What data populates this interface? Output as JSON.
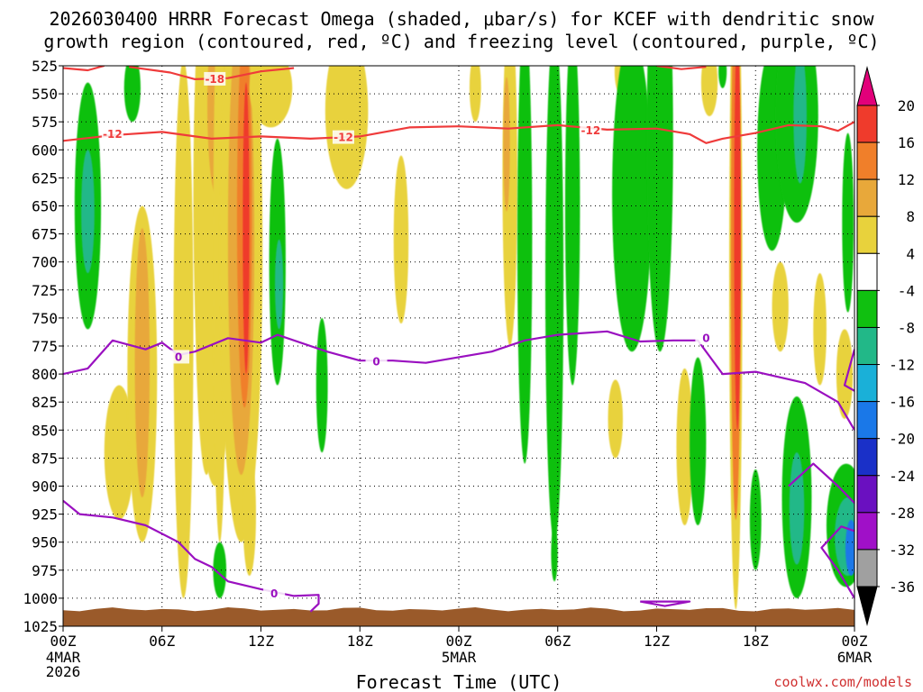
{
  "title_line1": "2026030400 HRRR Forecast Omega (shaded, μbar/s) for KCEF with dendritic snow",
  "title_line2": "growth region (contoured, red, ºC) and freezing level (contoured, purple, ºC)",
  "xlabel": "Forecast Time (UTC)",
  "watermark": "coolwx.com/models",
  "chart_data": {
    "type": "heatmap",
    "x_range_hours": [
      0,
      48
    ],
    "y_range_hPa": [
      525,
      1025
    ],
    "y_ticks": [
      "525",
      "550",
      "575",
      "600",
      "625",
      "650",
      "675",
      "700",
      "725",
      "750",
      "775",
      "800",
      "825",
      "850",
      "875",
      "900",
      "925",
      "950",
      "975",
      "1000",
      "1025"
    ],
    "x_ticks": [
      {
        "h": 0,
        "label": "00Z"
      },
      {
        "h": 6,
        "label": "06Z"
      },
      {
        "h": 12,
        "label": "12Z"
      },
      {
        "h": 18,
        "label": "18Z"
      },
      {
        "h": 24,
        "label": "00Z"
      },
      {
        "h": 30,
        "label": "06Z"
      },
      {
        "h": 36,
        "label": "12Z"
      },
      {
        "h": 42,
        "label": "18Z"
      },
      {
        "h": 48,
        "label": "00Z"
      }
    ],
    "date_labels": [
      {
        "h": 0,
        "lines": [
          "4MAR",
          "2026"
        ]
      },
      {
        "h": 24,
        "lines": [
          "5MAR"
        ]
      },
      {
        "h": 48,
        "lines": [
          "6MAR"
        ]
      }
    ],
    "colorbar": {
      "labels": [
        "20",
        "16",
        "12",
        "8",
        "4",
        "-4",
        "-8",
        "-12",
        "-16",
        "-20",
        "-24",
        "-28",
        "-32",
        "-36"
      ],
      "colors": [
        "#e2007a",
        "#ef3b2c",
        "#f07f2a",
        "#e8a83a",
        "#e8d23c",
        "#ffffff",
        "#10c010",
        "#22b888",
        "#1ab0d8",
        "#1a78e8",
        "#1a30c8",
        "#6a10c0",
        "#a010c8",
        "#a0a0a0",
        "#000000"
      ]
    },
    "omega_cells": [
      {
        "h": 1.5,
        "p": 650,
        "rh": 0.8,
        "rp": 110,
        "c": "#10c010"
      },
      {
        "h": 1.5,
        "p": 655,
        "rh": 0.4,
        "rp": 55,
        "c": "#22b888"
      },
      {
        "h": 4.2,
        "p": 545,
        "rh": 0.5,
        "rp": 30,
        "c": "#10c010"
      },
      {
        "h": 3.4,
        "p": 870,
        "rh": 0.9,
        "rp": 60,
        "c": "#e8d23c"
      },
      {
        "h": 4.8,
        "p": 800,
        "rh": 0.9,
        "rp": 150,
        "c": "#e8d23c"
      },
      {
        "h": 4.8,
        "p": 790,
        "rh": 0.45,
        "rp": 120,
        "c": "#e8a83a"
      },
      {
        "h": 7.3,
        "p": 760,
        "rh": 0.6,
        "rp": 240,
        "c": "#e8d23c"
      },
      {
        "h": 8.7,
        "p": 700,
        "rh": 0.7,
        "rp": 190,
        "c": "#e8d23c"
      },
      {
        "h": 9.2,
        "p": 640,
        "rh": 1.3,
        "rp": 260,
        "c": "#e8d23c"
      },
      {
        "h": 9.3,
        "p": 560,
        "rh": 0.55,
        "rp": 80,
        "c": "#e8a83a"
      },
      {
        "h": 9.5,
        "p": 700,
        "rh": 0.4,
        "rp": 250,
        "c": "#e8d23c"
      },
      {
        "h": 9.5,
        "p": 975,
        "rh": 0.4,
        "rp": 25,
        "c": "#10c010"
      },
      {
        "h": 10.8,
        "p": 690,
        "rh": 1.3,
        "rp": 260,
        "c": "#e8d23c"
      },
      {
        "h": 10.8,
        "p": 680,
        "rh": 0.8,
        "rp": 210,
        "c": "#e8a83a"
      },
      {
        "h": 11.0,
        "p": 660,
        "rh": 0.45,
        "rp": 170,
        "c": "#f07f2a"
      },
      {
        "h": 11.1,
        "p": 670,
        "rh": 0.2,
        "rp": 130,
        "c": "#ef3b2c"
      },
      {
        "h": 11.3,
        "p": 925,
        "rh": 0.4,
        "rp": 55,
        "c": "#e8d23c"
      },
      {
        "h": 12.6,
        "p": 545,
        "rh": 1.3,
        "rp": 35,
        "c": "#e8d23c"
      },
      {
        "h": 13.0,
        "p": 700,
        "rh": 0.5,
        "rp": 110,
        "c": "#10c010"
      },
      {
        "h": 13.1,
        "p": 720,
        "rh": 0.25,
        "rp": 40,
        "c": "#22b888"
      },
      {
        "h": 15.7,
        "p": 810,
        "rh": 0.35,
        "rp": 60,
        "c": "#10c010"
      },
      {
        "h": 17.2,
        "p": 565,
        "rh": 1.3,
        "rp": 70,
        "c": "#e8d23c"
      },
      {
        "h": 20.5,
        "p": 680,
        "rh": 0.45,
        "rp": 75,
        "c": "#e8d23c"
      },
      {
        "h": 25.0,
        "p": 545,
        "rh": 0.35,
        "rp": 30,
        "c": "#e8d23c"
      },
      {
        "h": 27.1,
        "p": 625,
        "rh": 0.45,
        "rp": 150,
        "c": "#e8d23c"
      },
      {
        "h": 26.9,
        "p": 595,
        "rh": 0.2,
        "rp": 60,
        "c": "#e8a83a"
      },
      {
        "h": 28.0,
        "p": 680,
        "rh": 0.45,
        "rp": 200,
        "c": "#10c010"
      },
      {
        "h": 29.8,
        "p": 720,
        "rh": 0.55,
        "rp": 230,
        "c": "#10c010"
      },
      {
        "h": 30.9,
        "p": 650,
        "rh": 0.45,
        "rp": 160,
        "c": "#10c010"
      },
      {
        "h": 29.8,
        "p": 960,
        "rh": 0.2,
        "rp": 25,
        "c": "#10c010"
      },
      {
        "h": 33.8,
        "p": 530,
        "rh": 0.35,
        "rp": 20,
        "c": "#e8d23c"
      },
      {
        "h": 33.5,
        "p": 840,
        "rh": 0.45,
        "rp": 35,
        "c": "#e8d23c"
      },
      {
        "h": 34.5,
        "p": 640,
        "rh": 1.2,
        "rp": 140,
        "c": "#10c010"
      },
      {
        "h": 36.2,
        "p": 590,
        "rh": 0.8,
        "rp": 190,
        "c": "#10c010"
      },
      {
        "h": 37.7,
        "p": 865,
        "rh": 0.5,
        "rp": 70,
        "c": "#e8d23c"
      },
      {
        "h": 38.5,
        "p": 860,
        "rh": 0.5,
        "rp": 75,
        "c": "#10c010"
      },
      {
        "h": 39.2,
        "p": 540,
        "rh": 0.5,
        "rp": 30,
        "c": "#e8d23c"
      },
      {
        "h": 40.0,
        "p": 530,
        "rh": 0.25,
        "rp": 15,
        "c": "#10c010"
      },
      {
        "h": 40.8,
        "p": 710,
        "rh": 0.4,
        "rp": 300,
        "c": "#e8d23c"
      },
      {
        "h": 40.8,
        "p": 690,
        "rh": 0.3,
        "rp": 240,
        "c": "#f07f2a"
      },
      {
        "h": 40.9,
        "p": 670,
        "rh": 0.2,
        "rp": 180,
        "c": "#ef3b2c"
      },
      {
        "h": 42.0,
        "p": 930,
        "rh": 0.35,
        "rp": 45,
        "c": "#10c010"
      },
      {
        "h": 43.0,
        "p": 600,
        "rh": 0.9,
        "rp": 90,
        "c": "#10c010"
      },
      {
        "h": 44.5,
        "p": 570,
        "rh": 1.3,
        "rp": 95,
        "c": "#10c010"
      },
      {
        "h": 44.7,
        "p": 570,
        "rh": 0.4,
        "rp": 60,
        "c": "#22b888"
      },
      {
        "h": 43.5,
        "p": 740,
        "rh": 0.5,
        "rp": 40,
        "c": "#e8d23c"
      },
      {
        "h": 44.5,
        "p": 910,
        "rh": 0.9,
        "rp": 90,
        "c": "#10c010"
      },
      {
        "h": 44.5,
        "p": 920,
        "rh": 0.45,
        "rp": 50,
        "c": "#22b888"
      },
      {
        "h": 45.9,
        "p": 760,
        "rh": 0.4,
        "rp": 50,
        "c": "#e8d23c"
      },
      {
        "h": 47.4,
        "p": 800,
        "rh": 0.5,
        "rp": 40,
        "c": "#e8d23c"
      },
      {
        "h": 47.6,
        "p": 665,
        "rh": 0.35,
        "rp": 80,
        "c": "#10c010"
      },
      {
        "h": 47.5,
        "p": 935,
        "rh": 1.2,
        "rp": 55,
        "c": "#10c010"
      },
      {
        "h": 47.6,
        "p": 945,
        "rh": 0.8,
        "rp": 35,
        "c": "#22b888"
      },
      {
        "h": 47.8,
        "p": 955,
        "rh": 0.35,
        "rp": 25,
        "c": "#1a78e8"
      }
    ],
    "dgz_contours": [
      {
        "label": "-12",
        "label_at": [
          [
            3.0,
            586
          ],
          [
            17.0,
            589
          ],
          [
            32.0,
            583
          ]
        ],
        "points": [
          [
            0,
            592
          ],
          [
            3,
            587
          ],
          [
            6,
            584
          ],
          [
            9,
            590
          ],
          [
            12,
            588
          ],
          [
            15,
            590
          ],
          [
            18,
            588
          ],
          [
            21,
            580
          ],
          [
            24,
            579
          ],
          [
            27,
            581
          ],
          [
            30,
            578
          ],
          [
            33,
            582
          ],
          [
            36,
            581
          ],
          [
            38,
            586
          ],
          [
            39,
            594
          ],
          [
            40,
            590
          ],
          [
            42,
            585
          ],
          [
            44,
            578
          ],
          [
            46,
            579
          ],
          [
            47,
            583
          ],
          [
            48,
            575
          ]
        ]
      },
      {
        "label": "-18",
        "label_at": [
          [
            9.2,
            537
          ]
        ],
        "points": [
          [
            4,
            526
          ],
          [
            6.5,
            531
          ],
          [
            8,
            537
          ],
          [
            10,
            536
          ],
          [
            12,
            530
          ],
          [
            14,
            527
          ]
        ]
      },
      {
        "label": "",
        "label_at": [],
        "points": [
          [
            0,
            527
          ],
          [
            1.5,
            529
          ],
          [
            2.5,
            525
          ]
        ]
      },
      {
        "label": "",
        "label_at": [],
        "points": [
          [
            36,
            525
          ],
          [
            37.5,
            528
          ],
          [
            39,
            526
          ]
        ]
      }
    ],
    "freezing_contours": [
      {
        "label": "0",
        "label_at": [
          [
            7.0,
            785
          ],
          [
            19.0,
            789
          ],
          [
            39.0,
            768
          ]
        ],
        "points": [
          [
            0,
            800
          ],
          [
            1.5,
            795
          ],
          [
            3,
            770
          ],
          [
            5,
            778
          ],
          [
            6,
            772
          ],
          [
            7,
            783
          ],
          [
            8,
            780
          ],
          [
            10,
            768
          ],
          [
            12,
            772
          ],
          [
            13,
            765
          ],
          [
            16,
            780
          ],
          [
            18,
            788
          ],
          [
            20,
            788
          ],
          [
            22,
            790
          ],
          [
            24,
            785
          ],
          [
            26,
            780
          ],
          [
            28,
            770
          ],
          [
            30,
            765
          ],
          [
            33,
            762
          ],
          [
            35,
            771
          ],
          [
            37,
            770
          ],
          [
            38.5,
            770
          ],
          [
            40,
            800
          ],
          [
            42,
            798
          ],
          [
            45,
            808
          ],
          [
            47,
            825
          ],
          [
            48,
            850
          ]
        ]
      },
      {
        "label": "0",
        "label_at": [
          [
            12.8,
            996
          ]
        ],
        "points": [
          [
            0,
            913
          ],
          [
            1,
            925
          ],
          [
            3,
            928
          ],
          [
            5,
            935
          ],
          [
            7,
            950
          ],
          [
            8,
            965
          ],
          [
            9,
            972
          ],
          [
            10,
            985
          ],
          [
            12,
            992
          ],
          [
            14,
            998
          ],
          [
            15.5,
            997
          ],
          [
            15.5,
            1005
          ],
          [
            15,
            1012
          ]
        ]
      },
      {
        "label": "",
        "label_at": [],
        "points": [
          [
            44,
            900
          ],
          [
            45.5,
            880
          ],
          [
            47,
            900
          ],
          [
            48,
            915
          ]
        ]
      },
      {
        "label": "",
        "label_at": [],
        "points": [
          [
            48,
            778
          ],
          [
            47.4,
            810
          ],
          [
            48,
            815
          ]
        ]
      },
      {
        "label": "",
        "label_at": [],
        "points": [
          [
            48,
            940
          ],
          [
            47.2,
            936
          ],
          [
            46,
            955
          ],
          [
            47,
            975
          ],
          [
            48,
            1000
          ]
        ]
      },
      {
        "label": "",
        "label_at": [],
        "points": [
          [
            35,
            1003
          ],
          [
            36.5,
            1007
          ],
          [
            38,
            1003
          ],
          [
            35,
            1003
          ]
        ]
      }
    ],
    "terrain_top_hPa": 1010
  }
}
